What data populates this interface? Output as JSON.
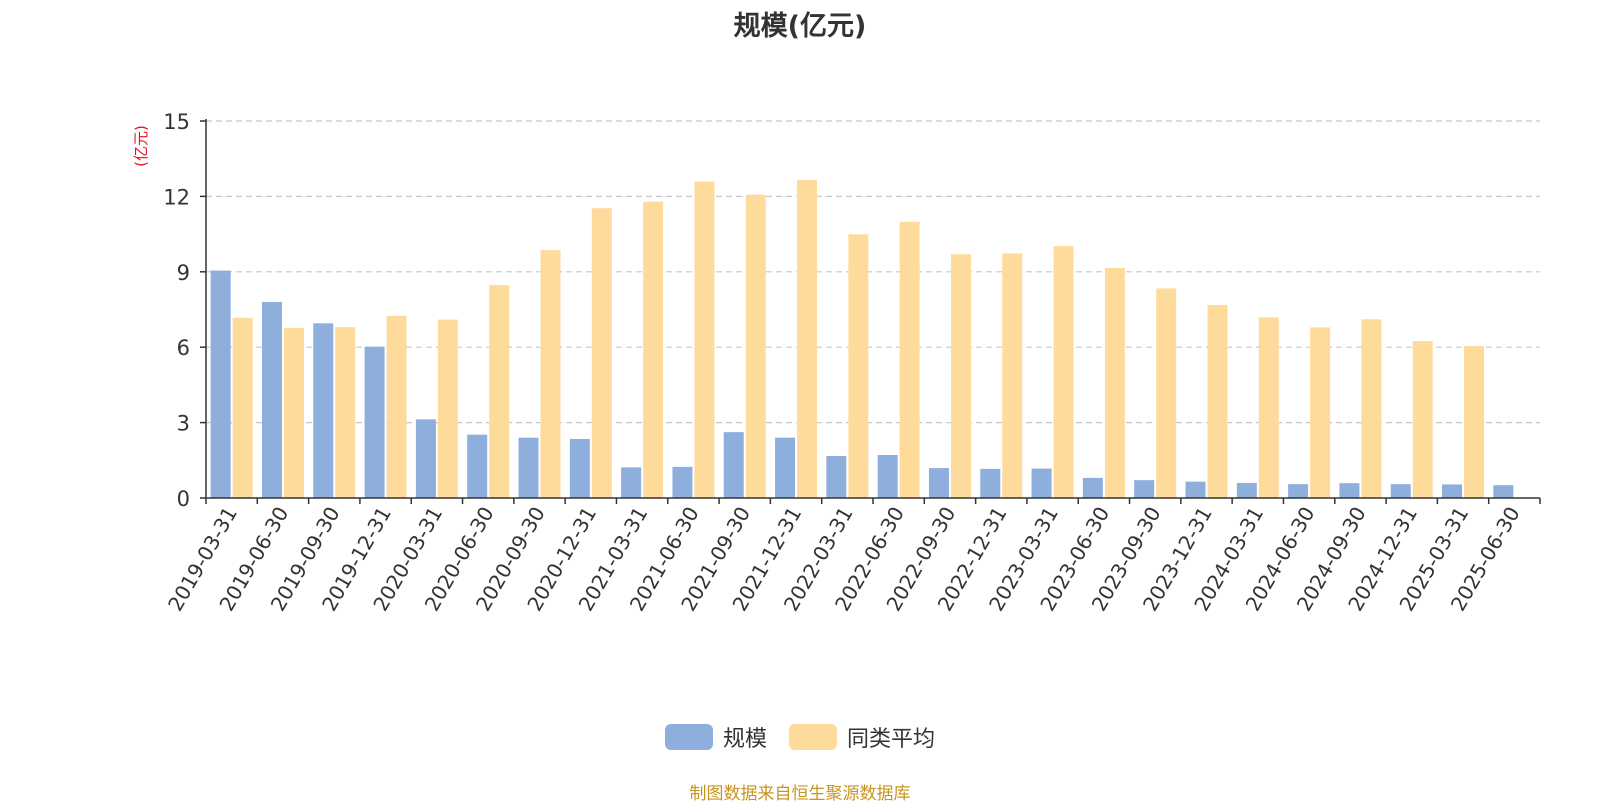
{
  "chart_data": {
    "type": "bar",
    "title": "规模(亿元)",
    "ylabel": "(亿元)",
    "ylim": [
      0,
      15
    ],
    "yticks": [
      0,
      3,
      6,
      9,
      12,
      15
    ],
    "grid": true,
    "legend_placement": "bottom-center",
    "categories": [
      "2019-03-31",
      "2019-06-30",
      "2019-09-30",
      "2019-12-31",
      "2020-03-31",
      "2020-06-30",
      "2020-09-30",
      "2020-12-31",
      "2021-03-31",
      "2021-06-30",
      "2021-09-30",
      "2021-12-31",
      "2022-03-31",
      "2022-06-30",
      "2022-09-30",
      "2022-12-31",
      "2023-03-31",
      "2023-06-30",
      "2023-09-30",
      "2023-12-31",
      "2024-03-31",
      "2024-06-30",
      "2024-09-30",
      "2024-12-31",
      "2025-03-31",
      "2025-06-30"
    ],
    "series": [
      {
        "name": "规模",
        "color": "#8eaedc",
        "values": [
          9.05,
          7.8,
          6.95,
          6.02,
          3.13,
          2.52,
          2.4,
          2.35,
          1.22,
          1.24,
          2.62,
          2.4,
          1.67,
          1.71,
          1.19,
          1.16,
          1.17,
          0.8,
          0.71,
          0.65,
          0.6,
          0.55,
          0.59,
          0.55,
          0.54,
          0.51
        ]
      },
      {
        "name": "同类平均",
        "color": "#fedb9b",
        "values": [
          7.17,
          6.77,
          6.8,
          7.25,
          7.1,
          8.47,
          9.86,
          11.53,
          11.79,
          12.59,
          12.07,
          12.65,
          10.49,
          10.99,
          9.7,
          9.73,
          10.02,
          9.15,
          8.34,
          7.68,
          7.19,
          6.79,
          7.11,
          6.24,
          6.05,
          null
        ]
      }
    ]
  },
  "source_note": "制图数据来自恒生聚源数据库"
}
